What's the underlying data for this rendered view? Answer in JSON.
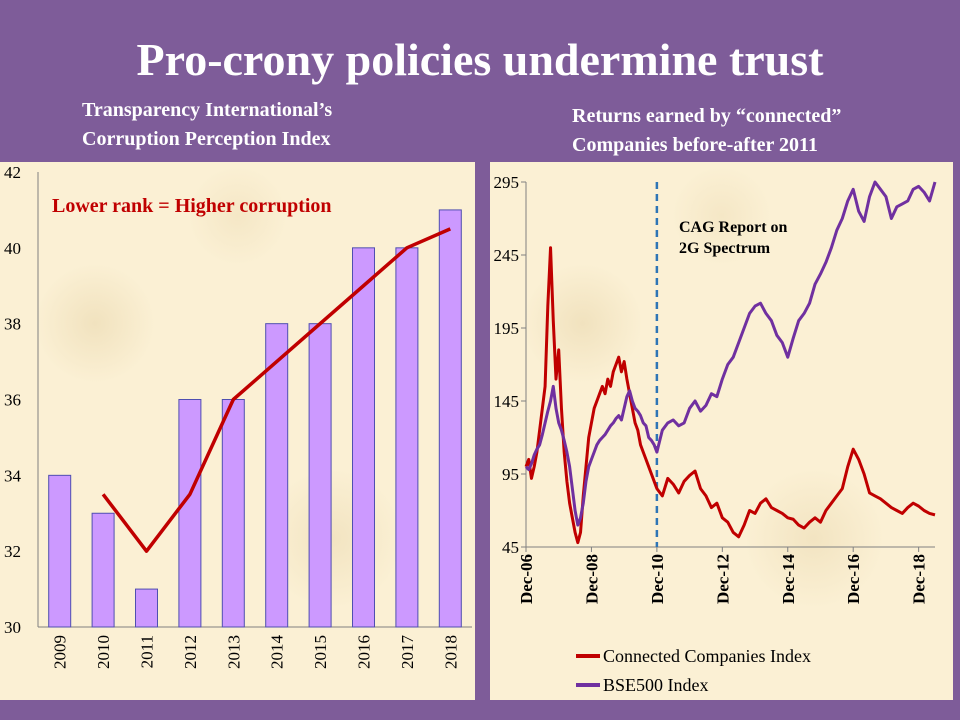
{
  "slide": {
    "title": "Pro-crony policies undermine trust",
    "left_subtitle": [
      "Transparency International’s",
      "Corruption Perception Index"
    ],
    "right_subtitle": [
      "Returns earned by “connected”",
      "Companies before-after 2011"
    ]
  },
  "colors": {
    "background": "#7e5c99",
    "panel": "#fbf0d4",
    "bar_fill": "#cc99ff",
    "trend_red": "#c00000",
    "connected_red": "#c00000",
    "bse_purple": "#7030a0",
    "dashed_line": "#2e75b6"
  },
  "chart_data": [
    {
      "type": "bar",
      "categories": [
        "2009",
        "2010",
        "2011",
        "2012",
        "2013",
        "2014",
        "2015",
        "2016",
        "2017",
        "2018"
      ],
      "values": [
        34,
        33,
        31,
        36,
        36,
        38,
        38,
        40,
        40,
        41
      ],
      "trend_line": {
        "x": [
          2010,
          2011,
          2012,
          2013,
          2016,
          2017,
          2018
        ],
        "y": [
          33.5,
          32.0,
          33.5,
          36.0,
          39.0,
          40.0,
          40.5
        ]
      },
      "annotation": "Lower rank = Higher corruption",
      "ylim": [
        30,
        42
      ],
      "yticks": [
        "30",
        "32",
        "34",
        "36",
        "38",
        "40",
        "42"
      ],
      "grid": false
    },
    {
      "type": "line",
      "ylim": [
        45,
        295
      ],
      "yticks": [
        "45",
        "95",
        "145",
        "195",
        "245",
        "295"
      ],
      "x_range": [
        "2006-12",
        "2019-06"
      ],
      "xticks": [
        "Dec-06",
        "Dec-08",
        "Dec-10",
        "Dec-12",
        "Dec-14",
        "Dec-16",
        "Dec-18"
      ],
      "annotation": "CAG Report on 2G Spectrum",
      "annotation_x": "2010-12",
      "legend": "bottom",
      "series": [
        {
          "name": "Connected Companies Index",
          "color": "#c00000",
          "x": [
            "2006-12",
            "2007-01",
            "2007-02",
            "2007-03",
            "2007-04",
            "2007-05",
            "2007-06",
            "2007-07",
            "2007-08",
            "2007-09",
            "2007-10",
            "2007-11",
            "2007-12",
            "2008-01",
            "2008-02",
            "2008-03",
            "2008-04",
            "2008-05",
            "2008-06",
            "2008-07",
            "2008-08",
            "2008-09",
            "2008-10",
            "2008-11",
            "2008-12",
            "2009-01",
            "2009-02",
            "2009-03",
            "2009-04",
            "2009-05",
            "2009-06",
            "2009-07",
            "2009-08",
            "2009-09",
            "2009-10",
            "2009-11",
            "2009-12",
            "2010-01",
            "2010-02",
            "2010-03",
            "2010-04",
            "2010-05",
            "2010-06",
            "2010-07",
            "2010-08",
            "2010-09",
            "2010-10",
            "2010-11",
            "2010-12",
            "2011-02",
            "2011-04",
            "2011-06",
            "2011-08",
            "2011-10",
            "2011-12",
            "2012-02",
            "2012-04",
            "2012-06",
            "2012-08",
            "2012-10",
            "2012-12",
            "2013-02",
            "2013-04",
            "2013-06",
            "2013-08",
            "2013-10",
            "2013-12",
            "2014-02",
            "2014-04",
            "2014-06",
            "2014-08",
            "2014-10",
            "2014-12",
            "2015-02",
            "2015-04",
            "2015-06",
            "2015-08",
            "2015-10",
            "2015-12",
            "2016-02",
            "2016-04",
            "2016-06",
            "2016-08",
            "2016-10",
            "2016-12",
            "2017-02",
            "2017-04",
            "2017-06",
            "2017-08",
            "2017-10",
            "2017-12",
            "2018-02",
            "2018-04",
            "2018-06",
            "2018-08",
            "2018-10",
            "2018-12",
            "2019-02",
            "2019-04",
            "2019-06"
          ],
          "y": [
            100,
            105,
            92,
            100,
            110,
            125,
            140,
            155,
            210,
            250,
            200,
            160,
            180,
            140,
            110,
            90,
            75,
            65,
            55,
            48,
            55,
            80,
            100,
            120,
            130,
            140,
            145,
            150,
            155,
            150,
            160,
            155,
            165,
            170,
            175,
            165,
            172,
            160,
            150,
            140,
            130,
            125,
            115,
            110,
            105,
            100,
            95,
            90,
            85,
            80,
            92,
            88,
            82,
            90,
            94,
            97,
            85,
            80,
            72,
            75,
            65,
            62,
            55,
            52,
            60,
            70,
            68,
            75,
            78,
            72,
            70,
            68,
            65,
            64,
            60,
            58,
            62,
            65,
            62,
            70,
            75,
            80,
            85,
            100,
            112,
            105,
            95,
            82,
            80,
            78,
            75,
            72,
            70,
            68,
            72,
            75,
            73,
            70,
            68,
            67
          ]
        },
        {
          "name": "BSE500 Index",
          "color": "#7030a0",
          "x": [
            "2006-12",
            "2007-01",
            "2007-02",
            "2007-03",
            "2007-04",
            "2007-05",
            "2007-06",
            "2007-07",
            "2007-08",
            "2007-09",
            "2007-10",
            "2007-11",
            "2007-12",
            "2008-01",
            "2008-02",
            "2008-03",
            "2008-04",
            "2008-05",
            "2008-06",
            "2008-07",
            "2008-08",
            "2008-09",
            "2008-10",
            "2008-11",
            "2008-12",
            "2009-01",
            "2009-02",
            "2009-03",
            "2009-04",
            "2009-05",
            "2009-06",
            "2009-07",
            "2009-08",
            "2009-09",
            "2009-10",
            "2009-11",
            "2009-12",
            "2010-01",
            "2010-02",
            "2010-03",
            "2010-04",
            "2010-05",
            "2010-06",
            "2010-07",
            "2010-08",
            "2010-09",
            "2010-10",
            "2010-11",
            "2010-12",
            "2011-02",
            "2011-04",
            "2011-06",
            "2011-08",
            "2011-10",
            "2011-12",
            "2012-02",
            "2012-04",
            "2012-06",
            "2012-08",
            "2012-10",
            "2012-12",
            "2013-02",
            "2013-04",
            "2013-06",
            "2013-08",
            "2013-10",
            "2013-12",
            "2014-02",
            "2014-04",
            "2014-06",
            "2014-08",
            "2014-10",
            "2014-12",
            "2015-02",
            "2015-04",
            "2015-06",
            "2015-08",
            "2015-10",
            "2015-12",
            "2016-02",
            "2016-04",
            "2016-06",
            "2016-08",
            "2016-10",
            "2016-12",
            "2017-02",
            "2017-04",
            "2017-06",
            "2017-08",
            "2017-10",
            "2017-12",
            "2018-02",
            "2018-04",
            "2018-06",
            "2018-08",
            "2018-10",
            "2018-12",
            "2019-02",
            "2019-04",
            "2019-06"
          ],
          "y": [
            100,
            98,
            102,
            108,
            112,
            115,
            122,
            130,
            138,
            145,
            155,
            140,
            130,
            125,
            118,
            110,
            100,
            85,
            70,
            60,
            65,
            75,
            90,
            100,
            105,
            110,
            115,
            118,
            120,
            122,
            125,
            128,
            130,
            133,
            135,
            132,
            140,
            148,
            152,
            145,
            140,
            138,
            135,
            130,
            128,
            120,
            118,
            115,
            110,
            125,
            130,
            132,
            128,
            130,
            140,
            145,
            138,
            142,
            150,
            148,
            160,
            170,
            175,
            185,
            195,
            205,
            210,
            212,
            205,
            200,
            190,
            185,
            175,
            188,
            200,
            205,
            212,
            225,
            232,
            240,
            250,
            262,
            270,
            282,
            290,
            275,
            268,
            285,
            295,
            290,
            285,
            270,
            278,
            280,
            282,
            290,
            292,
            288,
            282,
            295
          ]
        }
      ]
    }
  ]
}
